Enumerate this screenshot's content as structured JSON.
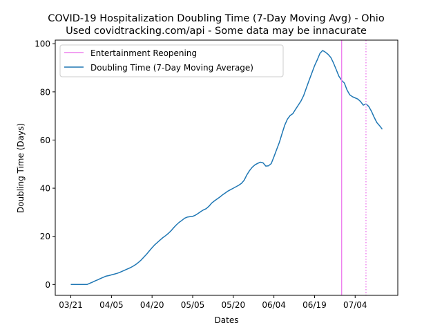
{
  "chart_data": {
    "type": "line",
    "title": "COVID-19 Hospitalization Doubling Time (7-Day Moving Avg) - Ohio",
    "subtitle": "Used covidtracking.com/api - Some data may be innacurate",
    "xlabel": "Dates",
    "ylabel": "Doubling Time (Days)",
    "x_ticks": [
      "03/21",
      "04/05",
      "04/20",
      "05/05",
      "05/20",
      "06/04",
      "06/19",
      "07/04"
    ],
    "y_ticks": [
      "0",
      "20",
      "40",
      "60",
      "80",
      "100"
    ],
    "ylim": [
      -4.5,
      101.5
    ],
    "grid": false,
    "legend": "top-left",
    "series": [
      {
        "name": "Doubling Time (7-Day Moving Average)",
        "color": "#1f77b4",
        "x": [
          "03/21",
          "03/22",
          "03/23",
          "03/24",
          "03/25",
          "03/26",
          "03/27",
          "03/28",
          "03/29",
          "03/30",
          "03/31",
          "04/01",
          "04/02",
          "04/03",
          "04/04",
          "04/05",
          "04/06",
          "04/07",
          "04/08",
          "04/09",
          "04/10",
          "04/11",
          "04/12",
          "04/13",
          "04/14",
          "04/15",
          "04/16",
          "04/17",
          "04/18",
          "04/19",
          "04/20",
          "04/21",
          "04/22",
          "04/23",
          "04/24",
          "04/25",
          "04/26",
          "04/27",
          "04/28",
          "04/29",
          "04/30",
          "05/01",
          "05/02",
          "05/03",
          "05/04",
          "05/05",
          "05/06",
          "05/07",
          "05/08",
          "05/09",
          "05/10",
          "05/11",
          "05/12",
          "05/13",
          "05/14",
          "05/15",
          "05/16",
          "05/17",
          "05/18",
          "05/19",
          "05/20",
          "05/21",
          "05/22",
          "05/23",
          "05/24",
          "05/25",
          "05/26",
          "05/27",
          "05/28",
          "05/29",
          "05/30",
          "05/31",
          "06/01",
          "06/02",
          "06/03",
          "06/04",
          "06/05",
          "06/06",
          "06/07",
          "06/08",
          "06/09",
          "06/10",
          "06/11",
          "06/12",
          "06/13",
          "06/14",
          "06/15",
          "06/16",
          "06/17",
          "06/18",
          "06/19",
          "06/20",
          "06/21",
          "06/22",
          "06/23",
          "06/24",
          "06/25",
          "06/26",
          "06/27",
          "06/28",
          "06/29",
          "06/30",
          "07/01",
          "07/02",
          "07/03",
          "07/04",
          "07/05",
          "07/06",
          "07/07",
          "07/08",
          "07/09",
          "07/10",
          "07/11",
          "07/12",
          "07/13",
          "07/14"
        ],
        "y": [
          0,
          0,
          0,
          0,
          0,
          0,
          0,
          0.5,
          1,
          1.5,
          2,
          2.5,
          3,
          3.5,
          3.7,
          4,
          4.3,
          4.6,
          5,
          5.5,
          6,
          6.5,
          7,
          7.6,
          8.3,
          9.2,
          10.2,
          11.4,
          12.6,
          14,
          15.3,
          16.5,
          17.5,
          18.5,
          19.5,
          20.3,
          21.2,
          22.3,
          23.6,
          24.8,
          25.8,
          26.6,
          27.5,
          28,
          28.2,
          28.3,
          28.8,
          29.5,
          30.3,
          31,
          31.5,
          32.5,
          33.8,
          34.7,
          35.5,
          36.3,
          37.2,
          38,
          38.8,
          39.4,
          40,
          40.6,
          41.2,
          42,
          43.3,
          45.5,
          47.3,
          48.7,
          49.7,
          50.3,
          50.8,
          50.5,
          49.2,
          49.3,
          50.2,
          53,
          56,
          59,
          62.7,
          66.2,
          68.7,
          70.2,
          71,
          72.8,
          74.5,
          76.2,
          78.5,
          81.7,
          84.8,
          87.8,
          90.8,
          93.3,
          96,
          97.2,
          96.5,
          95.6,
          94.3,
          92,
          89.3,
          86.5,
          84.8,
          83.7,
          80.8,
          78.8,
          78,
          77.5,
          77,
          76,
          74.5,
          75,
          74,
          72,
          69.5,
          67.3,
          66,
          64.5
        ]
      }
    ],
    "vlines": [
      {
        "name": "Entertainment Reopening",
        "x": "06/29",
        "color": "#ee82ee",
        "style": "solid"
      },
      {
        "x": "07/08",
        "color": "#ee82ee",
        "style": "dotted"
      }
    ]
  }
}
